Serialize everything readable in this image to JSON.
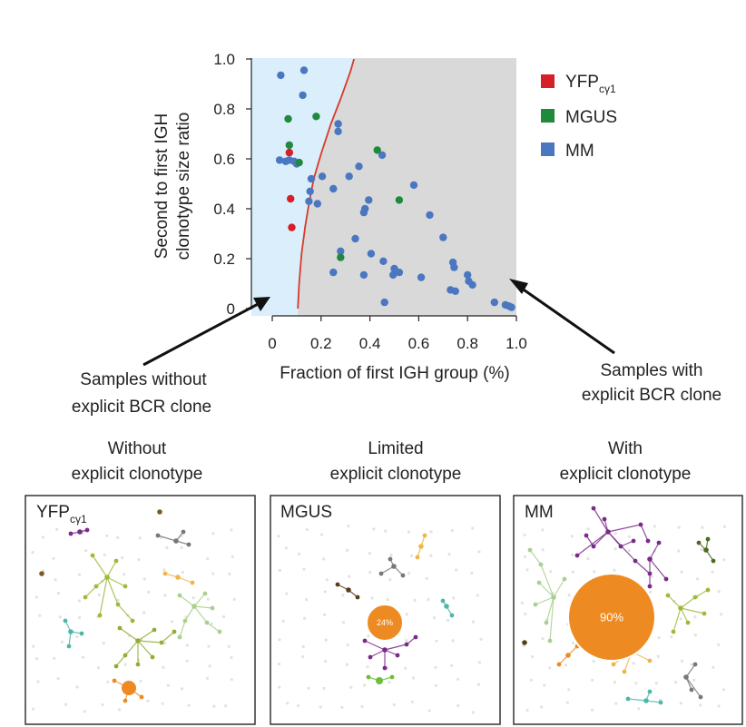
{
  "chart_data": {
    "type": "scatter",
    "xlabel": "Fraction of first IGH group (%)",
    "ylabel_line1": "Second to first IGH",
    "ylabel_line2": "clonotype  size ratio",
    "xlim": [
      0,
      1.0
    ],
    "ylim": [
      0,
      1.0
    ],
    "x_ticks": [
      "0",
      "0.2",
      "0.4",
      "0.6",
      "0.8",
      "1.0"
    ],
    "y_ticks": [
      "0",
      "0.2",
      "0.4",
      "0.6",
      "0.8",
      "1.0"
    ],
    "grid": false,
    "legend_position": "right",
    "regions": {
      "left_color": "#daeefb",
      "right_color": "#d9d9d9",
      "boundary_color": "#d83a2a"
    },
    "boundary_curve": {
      "x": [
        0.105,
        0.11,
        0.12,
        0.135,
        0.15,
        0.17,
        0.2,
        0.24,
        0.28,
        0.32,
        0.335
      ],
      "y": [
        0.0,
        0.1,
        0.22,
        0.33,
        0.42,
        0.52,
        0.62,
        0.74,
        0.84,
        0.95,
        1.0
      ]
    },
    "series": [
      {
        "name": "YFPcγ1",
        "color": "#d61f26",
        "x": [
          0.07,
          0.075,
          0.08
        ],
        "y": [
          0.625,
          0.44,
          0.325
        ]
      },
      {
        "name": "MGUS",
        "color": "#1f8a3c",
        "x": [
          0.065,
          0.07,
          0.11,
          0.18,
          0.28,
          0.43,
          0.52
        ],
        "y": [
          0.76,
          0.655,
          0.585,
          0.77,
          0.205,
          0.635,
          0.435
        ]
      },
      {
        "name": "MM",
        "color": "#4a77c0",
        "x": [
          0.035,
          0.13,
          0.125,
          0.03,
          0.055,
          0.07,
          0.09,
          0.1,
          0.16,
          0.205,
          0.27,
          0.27,
          0.315,
          0.355,
          0.45,
          0.155,
          0.15,
          0.185,
          0.25,
          0.38,
          0.395,
          0.375,
          0.58,
          0.645,
          0.7,
          0.28,
          0.34,
          0.25,
          0.375,
          0.405,
          0.455,
          0.5,
          0.52,
          0.61,
          0.74,
          0.745,
          0.8,
          0.805,
          0.82,
          0.73,
          0.75,
          0.46,
          0.495,
          0.91,
          0.955,
          0.97,
          0.98
        ],
        "y": [
          0.935,
          0.955,
          0.855,
          0.595,
          0.59,
          0.595,
          0.59,
          0.58,
          0.52,
          0.53,
          0.74,
          0.71,
          0.53,
          0.57,
          0.615,
          0.47,
          0.43,
          0.42,
          0.48,
          0.4,
          0.435,
          0.385,
          0.495,
          0.375,
          0.285,
          0.23,
          0.28,
          0.145,
          0.135,
          0.22,
          0.19,
          0.16,
          0.145,
          0.125,
          0.185,
          0.165,
          0.135,
          0.11,
          0.095,
          0.075,
          0.07,
          0.025,
          0.135,
          0.025,
          0.015,
          0.01,
          0.005
        ]
      }
    ]
  },
  "legend": [
    {
      "name": "YFP",
      "sub": "cγ1",
      "color": "#d61f26"
    },
    {
      "name": "MGUS",
      "sub": "",
      "color": "#1f8a3c"
    },
    {
      "name": "MM",
      "sub": "",
      "color": "#4a77c0"
    }
  ],
  "annotations": {
    "left_line1": "Samples without",
    "left_line2": "explicit BCR clone",
    "right_line1": "Samples with",
    "right_line2": "explicit BCR clone"
  },
  "panels": [
    {
      "heading_line1": "Without",
      "heading_line2": "explicit clonotype",
      "label": "YFP",
      "label_sub": "cγ1",
      "center_label": ""
    },
    {
      "heading_line1": "Limited",
      "heading_line2": "explicit clonotype",
      "label": "MGUS",
      "label_sub": "",
      "center_label": "24%"
    },
    {
      "heading_line1": "With",
      "heading_line2": "explicit clonotype",
      "label": "MM",
      "label_sub": "",
      "center_label": "90%"
    }
  ]
}
